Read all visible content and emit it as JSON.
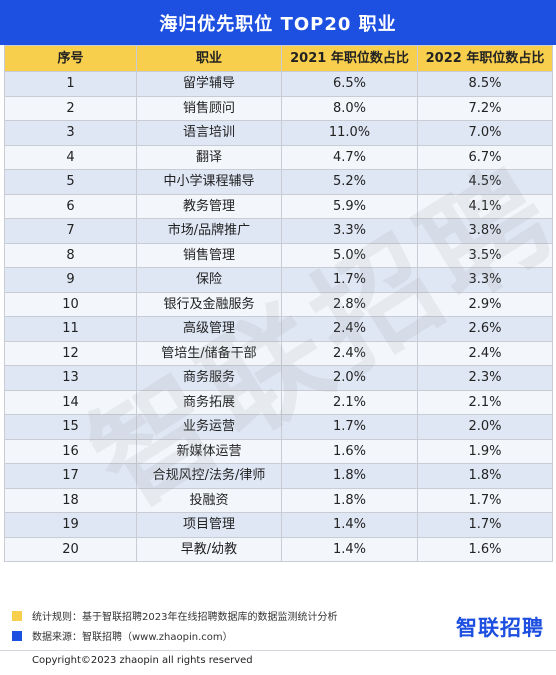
{
  "title": "海归优先职位 TOP20 职业",
  "colors": {
    "header_bg": "#1d4fe0",
    "table_header_bg": "#f7cf4d",
    "note1": "#f7cf4d",
    "note2": "#1d4fe0"
  },
  "chart_data": {
    "type": "table",
    "columns": [
      "序号",
      "职业",
      "2021 年职位数占比",
      "2022 年职位数占比"
    ],
    "rows": [
      [
        "1",
        "留学辅导",
        "6.5%",
        "8.5%"
      ],
      [
        "2",
        "销售顾问",
        "8.0%",
        "7.2%"
      ],
      [
        "3",
        "语言培训",
        "11.0%",
        "7.0%"
      ],
      [
        "4",
        "翻译",
        "4.7%",
        "6.7%"
      ],
      [
        "5",
        "中小学课程辅导",
        "5.2%",
        "4.5%"
      ],
      [
        "6",
        "教务管理",
        "5.9%",
        "4.1%"
      ],
      [
        "7",
        "市场/品牌推广",
        "3.3%",
        "3.8%"
      ],
      [
        "8",
        "销售管理",
        "5.0%",
        "3.5%"
      ],
      [
        "9",
        "保险",
        "1.7%",
        "3.3%"
      ],
      [
        "10",
        "银行及金融服务",
        "2.8%",
        "2.9%"
      ],
      [
        "11",
        "高级管理",
        "2.4%",
        "2.6%"
      ],
      [
        "12",
        "管培生/储备干部",
        "2.4%",
        "2.4%"
      ],
      [
        "13",
        "商务服务",
        "2.0%",
        "2.3%"
      ],
      [
        "14",
        "商务拓展",
        "2.1%",
        "2.1%"
      ],
      [
        "15",
        "业务运营",
        "1.7%",
        "2.0%"
      ],
      [
        "16",
        "新媒体运营",
        "1.6%",
        "1.9%"
      ],
      [
        "17",
        "合规风控/法务/律师",
        "1.8%",
        "1.8%"
      ],
      [
        "18",
        "投融资",
        "1.8%",
        "1.7%"
      ],
      [
        "19",
        "项目管理",
        "1.4%",
        "1.7%"
      ],
      [
        "20",
        "早教/幼教",
        "1.4%",
        "1.6%"
      ]
    ]
  },
  "watermark": "智联招聘",
  "footer": {
    "note1": "统计规则：基于智联招聘2023年在线招聘数据库的数据监测统计分析",
    "note2": "数据来源：智联招聘（www.zhaopin.com）",
    "logo": "智联招聘",
    "copyright": "Copyright©2023 zhaopin all rights reserved"
  }
}
